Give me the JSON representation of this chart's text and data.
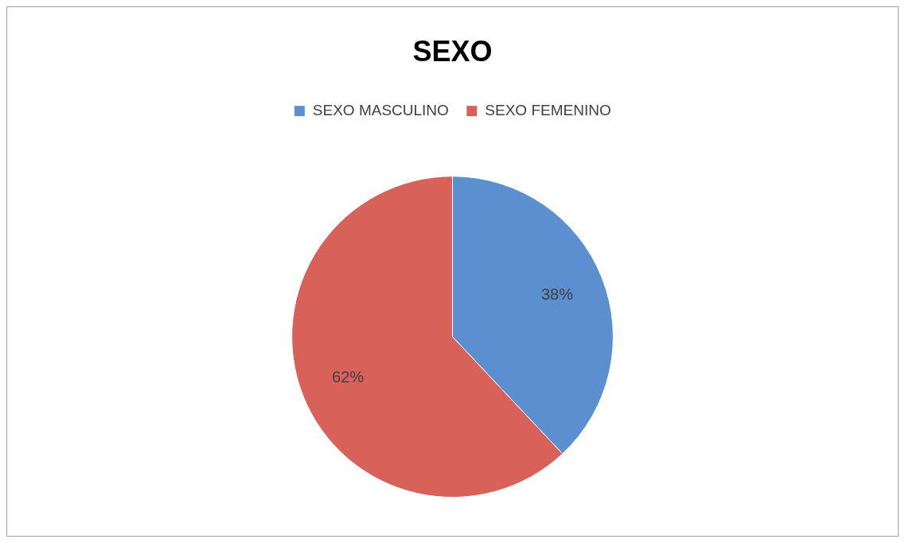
{
  "chart_data": {
    "type": "pie",
    "title": "SEXO",
    "categories": [
      "SEXO MASCULINO",
      "SEXO FEMENINO"
    ],
    "values": [
      38,
      62
    ],
    "colors": [
      "#5b8fd0",
      "#d8625a"
    ],
    "value_labels": [
      "38%",
      "62%"
    ],
    "legend": "top"
  }
}
